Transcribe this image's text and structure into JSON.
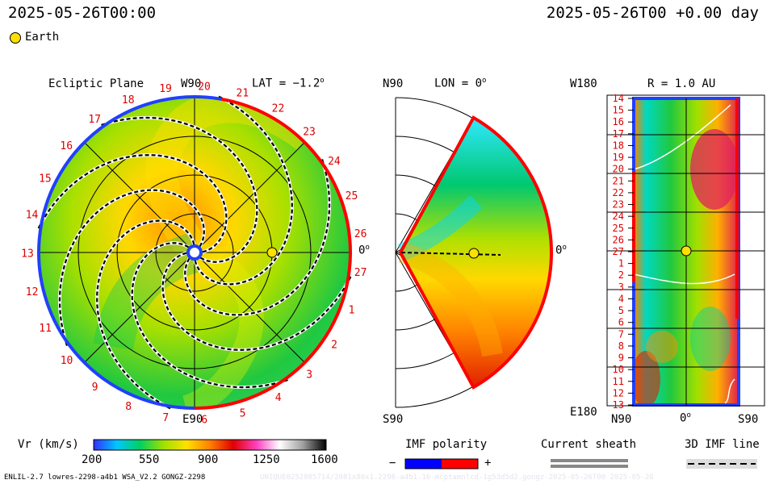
{
  "header": {
    "left_time": "2025-05-26T00:00",
    "right_time": "2025-05-26T00 +0.00 day",
    "legend_earth": "Earth"
  },
  "panels": {
    "ecliptic": {
      "title": "Ecliptic Plane",
      "top_label": "W90",
      "bottom_label": "E90",
      "right_label": "0",
      "lat_label": "LAT = −1.2"
    },
    "meridional": {
      "top_label": "N90",
      "bottom_label": "S90",
      "lon_label": "LON = 0",
      "right_label": "0"
    },
    "synoptic": {
      "title": "R = 1.0 AU",
      "top_left": "W180",
      "bottom_left": "E180",
      "x_labels": [
        "N90",
        "0",
        "S90"
      ]
    }
  },
  "chart_data": [
    {
      "type": "heatmap",
      "title": "Ecliptic Plane",
      "carrington_labels": [
        "19",
        "20",
        "21",
        "22",
        "23",
        "24",
        "25",
        "26",
        "27",
        "1",
        "2",
        "3",
        "4",
        "5",
        "6",
        "7",
        "8",
        "9",
        "10",
        "11",
        "12",
        "13",
        "14",
        "15",
        "16",
        "17",
        "18"
      ],
      "grid": true
    },
    {
      "type": "heatmap",
      "title": "LON = 0",
      "grid": true
    },
    {
      "type": "heatmap",
      "title": "R = 1.0 AU",
      "y_labels": [
        "14",
        "15",
        "16",
        "17",
        "18",
        "19",
        "20",
        "21",
        "22",
        "23",
        "24",
        "25",
        "26",
        "27",
        "1",
        "2",
        "3",
        "4",
        "5",
        "6",
        "7",
        "8",
        "9",
        "10",
        "11",
        "12",
        "13"
      ],
      "x_labels": [
        "N90",
        "0",
        "S90"
      ],
      "grid": true
    }
  ],
  "colorbar": {
    "label": "Vr (km/s)",
    "ticks": [
      "200",
      "550",
      "900",
      "1250",
      "1600"
    ],
    "range": [
      200,
      1600
    ],
    "colors": [
      "#3030ff",
      "#00c8ff",
      "#00d060",
      "#a0e000",
      "#ffe000",
      "#ff8000",
      "#e00000",
      "#ff40c0",
      "#ffffff",
      "#a0a0a0",
      "#000000"
    ]
  },
  "legends": {
    "imf_polarity": {
      "title": "IMF polarity",
      "minus": "−",
      "plus": "+",
      "minus_color": "#0000ff",
      "plus_color": "#ff0000"
    },
    "current_sheath": {
      "title": "Current sheath"
    },
    "imf_line": {
      "title": "3D IMF line"
    }
  },
  "footer": {
    "model_info": "ENLIL-2.7 lowres-2298-a4b1 WSA_V2.2 GONGZ-2298",
    "watermark": "UNIQUE0252805714/2081x80x1.2298-a4b1.16-mcptamnlcd-1g53d5d2.gongz-2025-05-26T00 2025-05-26"
  }
}
